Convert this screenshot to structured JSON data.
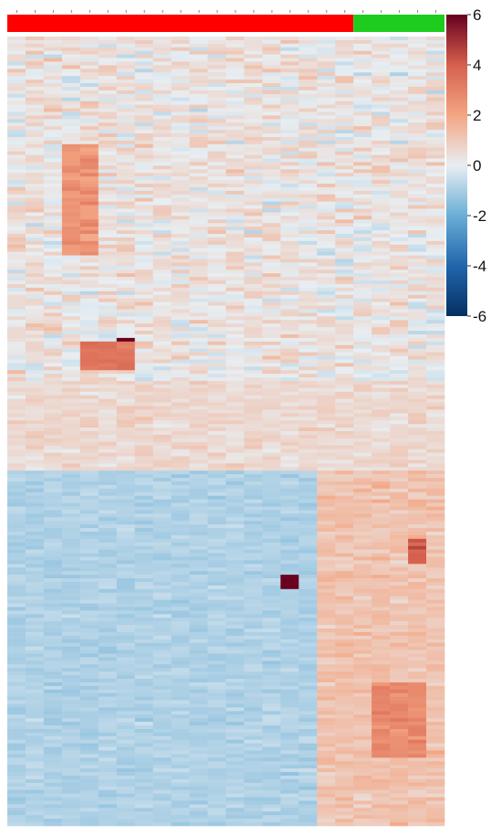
{
  "chart_data": {
    "type": "heatmap",
    "title": "",
    "xlabel": "",
    "ylabel": "",
    "n_columns": 24,
    "n_rows": 220,
    "group_annotation": [
      {
        "color": "#ff0000",
        "columns": 19
      },
      {
        "color": "#1ecc1e",
        "columns": 5
      }
    ],
    "color_scale": {
      "min": -6,
      "max": 6,
      "ticks": [
        "6",
        "4",
        "2",
        "0",
        "-2",
        "-4",
        "-6"
      ],
      "tick_values": [
        6,
        4,
        2,
        0,
        -2,
        -4,
        -6
      ],
      "stops": [
        {
          "value": -6,
          "color": "#053061"
        },
        {
          "value": -4,
          "color": "#2166ac"
        },
        {
          "value": -2,
          "color": "#6aaed6"
        },
        {
          "value": 0,
          "color": "#e8eef2"
        },
        {
          "value": 2,
          "color": "#f4a582"
        },
        {
          "value": 4,
          "color": "#d6604d"
        },
        {
          "value": 6,
          "color": "#67001f"
        }
      ]
    },
    "value_blocks": [
      {
        "rows": [
          0,
          95
        ],
        "columns": [
          0,
          23
        ],
        "mean": 0.3,
        "spread": 1.3
      },
      {
        "rows": [
          96,
          120
        ],
        "columns": [
          0,
          23
        ],
        "mean": 0.6,
        "spread": 0.7
      },
      {
        "rows": [
          121,
          219
        ],
        "columns": [
          0,
          16
        ],
        "mean": -0.9,
        "spread": 0.5
      },
      {
        "rows": [
          121,
          219
        ],
        "columns": [
          17,
          23
        ],
        "mean": 1.2,
        "spread": 0.8
      },
      {
        "rows": [
          30,
          60
        ],
        "columns": [
          3,
          4
        ],
        "mean": 2.5,
        "spread": 1.0
      },
      {
        "rows": [
          84,
          90
        ],
        "columns": [
          6,
          6
        ],
        "mean": 6.0,
        "spread": 0.2
      },
      {
        "rows": [
          85,
          92
        ],
        "columns": [
          4,
          6
        ],
        "mean": 3.5,
        "spread": 0.6
      },
      {
        "rows": [
          150,
          153
        ],
        "columns": [
          15,
          15
        ],
        "mean": 6.0,
        "spread": 0.2
      },
      {
        "rows": [
          140,
          146
        ],
        "columns": [
          22,
          22
        ],
        "mean": 4.0,
        "spread": 0.8
      },
      {
        "rows": [
          180,
          200
        ],
        "columns": [
          20,
          22
        ],
        "mean": 2.8,
        "spread": 0.8
      }
    ]
  }
}
